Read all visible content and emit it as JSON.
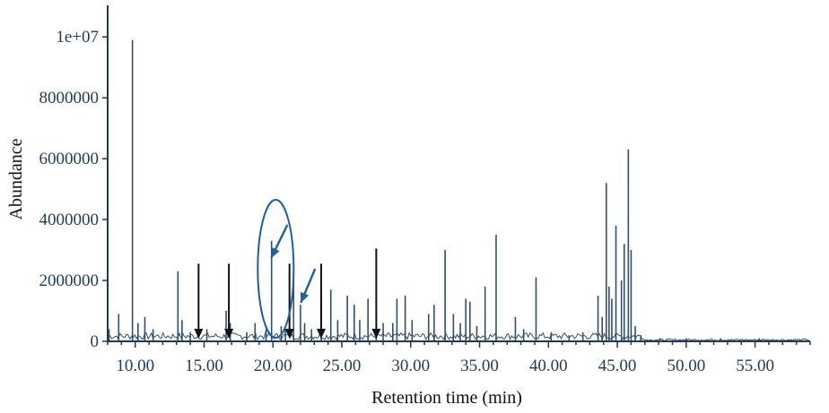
{
  "chart_data": {
    "type": "line",
    "title": "",
    "xlabel": "Retention time (min)",
    "ylabel": "Abundance",
    "xlim": [
      8.0,
      59.0
    ],
    "ylim": [
      0,
      10800000
    ],
    "x_ticks": [
      10,
      15,
      20,
      25,
      30,
      35,
      40,
      45,
      50,
      55
    ],
    "x_tick_labels": [
      "10.00",
      "15.00",
      "20.00",
      "25.00",
      "30.00",
      "35.00",
      "40.00",
      "45.00",
      "50.00",
      "55.00"
    ],
    "y_ticks": [
      0,
      2000000,
      4000000,
      6000000,
      8000000,
      10000000
    ],
    "y_tick_labels": [
      "0",
      "2000000",
      "4000000",
      "6000000",
      "8000000",
      "1e+07"
    ],
    "grid": false,
    "legend": "none",
    "colors": {
      "trace": "#2f4f6e",
      "axis": "#1f3b57",
      "annotation": "#1e5fa8",
      "arrow": "#111111"
    },
    "series": [
      {
        "x": [
          8.1,
          8.8,
          9.8,
          10.2,
          10.7,
          11.3,
          13.1,
          13.4,
          14.0,
          15.2,
          16.6,
          16.9,
          18.1,
          18.7,
          19.5,
          19.9,
          20.6,
          20.9,
          21.5,
          22.0,
          22.3,
          22.8,
          23.5,
          24.2,
          24.7,
          25.4,
          25.9,
          26.3,
          26.9,
          27.5,
          28.0,
          28.7,
          29.0,
          29.6,
          30.1,
          31.3,
          31.7,
          32.5,
          33.1,
          33.6,
          34.0,
          34.3,
          34.8,
          35.4,
          36.2,
          37.6,
          38.2,
          39.1,
          40.2,
          41.5,
          42.5,
          43.6,
          43.9,
          44.2,
          44.4,
          44.6,
          44.9,
          45.3,
          45.5,
          45.8,
          46.0,
          46.3,
          46.7,
          48.1,
          50.0,
          52.5,
          55.3
        ],
        "y": [
          400000,
          900000,
          9900000,
          600000,
          800000,
          400000,
          2300000,
          700000,
          300000,
          400000,
          1000000,
          600000,
          300000,
          600000,
          400000,
          3300000,
          500000,
          400000,
          2400000,
          1200000,
          600000,
          400000,
          1500000,
          1700000,
          700000,
          1500000,
          1200000,
          700000,
          1400000,
          800000,
          600000,
          600000,
          1400000,
          1500000,
          700000,
          900000,
          1200000,
          3000000,
          900000,
          600000,
          1400000,
          1300000,
          500000,
          1800000,
          3500000,
          800000,
          400000,
          2100000,
          300000,
          200000,
          300000,
          1500000,
          800000,
          5200000,
          1800000,
          1400000,
          3800000,
          2000000,
          3200000,
          6300000,
          3000000,
          500000,
          200000,
          100000,
          100000,
          100000,
          100000
        ]
      }
    ],
    "annotations": {
      "down_arrows_x": [
        14.6,
        16.8,
        21.2,
        23.5,
        27.5
      ],
      "diagonal_arrows_x": [
        20.2,
        21.5
      ],
      "ellipse_center_x": 20.2
    }
  }
}
